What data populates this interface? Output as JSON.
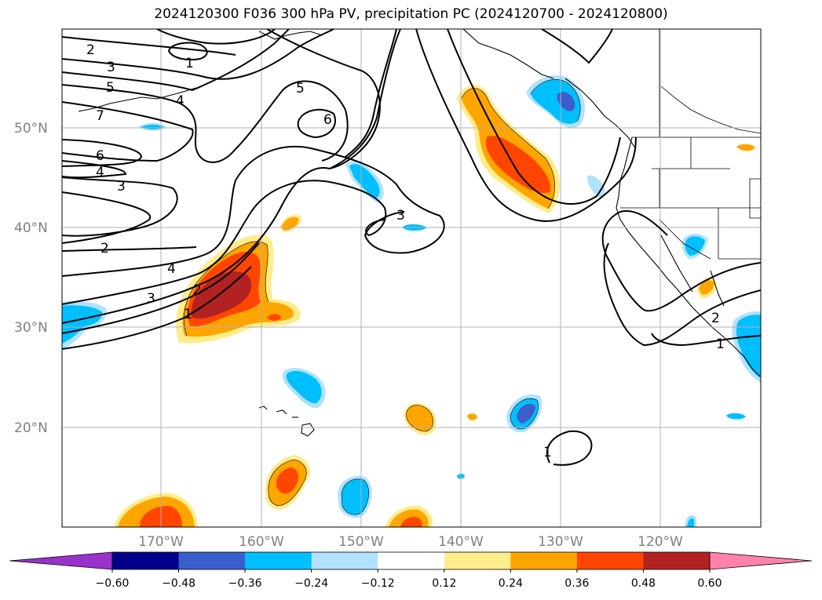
{
  "title": "2024120300 F036 300 hPa PV, precipitation PC (2024120700 - 2024120800)",
  "map": {
    "lat_labels": [
      "50°N",
      "40°N",
      "30°N",
      "20°N"
    ],
    "lon_labels": [
      "170°W",
      "160°W",
      "150°W",
      "140°W",
      "130°W",
      "120°W"
    ],
    "pv_contour_labels": [
      {
        "id": "c2a",
        "text": "2"
      },
      {
        "id": "c3a",
        "text": "3"
      },
      {
        "id": "c5a",
        "text": "5"
      },
      {
        "id": "c7",
        "text": "7"
      },
      {
        "id": "c6a",
        "text": "6"
      },
      {
        "id": "c4a",
        "text": "4"
      },
      {
        "id": "c3b",
        "text": "3"
      },
      {
        "id": "c2b",
        "text": "2"
      },
      {
        "id": "c4b",
        "text": "4"
      },
      {
        "id": "c3c",
        "text": "3"
      },
      {
        "id": "c2c",
        "text": "2"
      },
      {
        "id": "c1a",
        "text": "1"
      },
      {
        "id": "c1top",
        "text": "1"
      },
      {
        "id": "c4top",
        "text": "4"
      },
      {
        "id": "c5mid",
        "text": "5"
      },
      {
        "id": "c6mid",
        "text": "6"
      },
      {
        "id": "c3mid",
        "text": "3"
      },
      {
        "id": "c1sub",
        "text": "1"
      },
      {
        "id": "c2east",
        "text": "2"
      },
      {
        "id": "c1east",
        "text": "1"
      }
    ]
  },
  "colorbar": {
    "tick_labels": [
      "−0.60",
      "−0.48",
      "−0.36",
      "−0.24",
      "−0.12",
      "0.12",
      "0.24",
      "0.36",
      "0.48",
      "0.60"
    ],
    "colors": [
      "#9932CC",
      "#00008B",
      "#3A5FCD",
      "#00BFFF",
      "#B0E2FF",
      "#FFFFFF",
      "#FFEC8B",
      "#FFA500",
      "#FF4500",
      "#B22222",
      "#FF82AB"
    ]
  }
}
